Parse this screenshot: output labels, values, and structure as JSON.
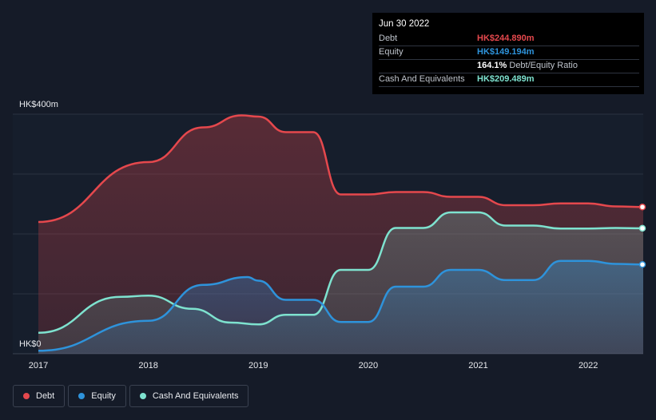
{
  "chart_data": {
    "type": "area",
    "title": "",
    "xlabel": "",
    "ylabel": "",
    "y_unit": "HK$m",
    "ylim": [
      0,
      400
    ],
    "y_ticks": [
      {
        "value": 400,
        "label": "HK$400m"
      },
      {
        "value": 0,
        "label": "HK$0"
      }
    ],
    "x_ticks": [
      {
        "value": 2017,
        "label": "2017"
      },
      {
        "value": 2018,
        "label": "2018"
      },
      {
        "value": 2019,
        "label": "2019"
      },
      {
        "value": 2020,
        "label": "2020"
      },
      {
        "value": 2021,
        "label": "2021"
      },
      {
        "value": 2022,
        "label": "2022"
      }
    ],
    "xlim": [
      2016.77,
      2022.5
    ],
    "series": [
      {
        "name": "Debt",
        "color": "#e5484d",
        "points": [
          [
            2017.0,
            220
          ],
          [
            2018.0,
            320
          ],
          [
            2018.5,
            378
          ],
          [
            2018.85,
            398
          ],
          [
            2019.0,
            396
          ],
          [
            2019.25,
            370
          ],
          [
            2019.5,
            370
          ],
          [
            2019.75,
            266
          ],
          [
            2020.0,
            266
          ],
          [
            2020.25,
            270
          ],
          [
            2020.5,
            270
          ],
          [
            2020.75,
            262
          ],
          [
            2021.0,
            262
          ],
          [
            2021.25,
            248
          ],
          [
            2021.5,
            248
          ],
          [
            2021.75,
            251
          ],
          [
            2022.0,
            251
          ],
          [
            2022.25,
            246
          ],
          [
            2022.5,
            245
          ]
        ]
      },
      {
        "name": "Equity",
        "color": "#2e93db",
        "points": [
          [
            2017.0,
            5
          ],
          [
            2018.0,
            55
          ],
          [
            2018.5,
            115
          ],
          [
            2018.9,
            128
          ],
          [
            2019.0,
            122
          ],
          [
            2019.25,
            90
          ],
          [
            2019.5,
            90
          ],
          [
            2019.75,
            53
          ],
          [
            2020.0,
            53
          ],
          [
            2020.25,
            112
          ],
          [
            2020.5,
            112
          ],
          [
            2020.75,
            140
          ],
          [
            2021.0,
            140
          ],
          [
            2021.25,
            123
          ],
          [
            2021.5,
            123
          ],
          [
            2021.75,
            155
          ],
          [
            2022.0,
            155
          ],
          [
            2022.25,
            150
          ],
          [
            2022.5,
            149
          ]
        ]
      },
      {
        "name": "Cash And Equivalents",
        "color": "#7ee2cf",
        "points": [
          [
            2017.0,
            35
          ],
          [
            2017.75,
            95
          ],
          [
            2018.0,
            97
          ],
          [
            2018.4,
            75
          ],
          [
            2018.75,
            52
          ],
          [
            2019.0,
            49
          ],
          [
            2019.25,
            65
          ],
          [
            2019.5,
            65
          ],
          [
            2019.75,
            140
          ],
          [
            2020.0,
            140
          ],
          [
            2020.25,
            210
          ],
          [
            2020.5,
            210
          ],
          [
            2020.75,
            236
          ],
          [
            2021.0,
            236
          ],
          [
            2021.25,
            214
          ],
          [
            2021.5,
            214
          ],
          [
            2021.75,
            209
          ],
          [
            2022.0,
            209
          ],
          [
            2022.25,
            210
          ],
          [
            2022.5,
            209.5
          ]
        ]
      }
    ],
    "legend_position": "bottom-left",
    "grid": true
  },
  "tooltip": {
    "date": "Jun 30 2022",
    "rows": {
      "debt": {
        "label": "Debt",
        "value": "HK$244.890m",
        "color": "#e5484d"
      },
      "equity": {
        "label": "Equity",
        "value": "HK$149.194m",
        "color": "#2e93db"
      },
      "ratio": {
        "value": "164.1%",
        "label": "Debt/Equity Ratio"
      },
      "cash": {
        "label": "Cash And Equivalents",
        "value": "HK$209.489m",
        "color": "#7ee2cf"
      }
    }
  },
  "legend": {
    "items": [
      {
        "label": "Debt",
        "color": "#e5484d"
      },
      {
        "label": "Equity",
        "color": "#2e93db"
      },
      {
        "label": "Cash And Equivalents",
        "color": "#7ee2cf"
      }
    ]
  }
}
